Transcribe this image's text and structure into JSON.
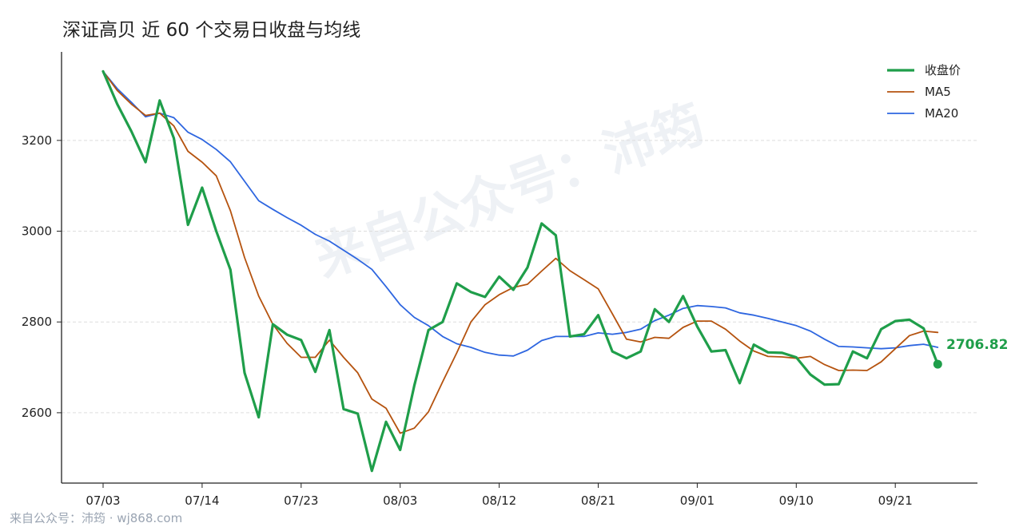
{
  "title": "深证高贝 近 60 个交易日收盘与均线",
  "watermark": "来自公众号：沛筠",
  "footer": "来自公众号：沛筠 · wj868.com",
  "colors": {
    "close": "#1f9e4a",
    "ma5": "#b5530f",
    "ma20": "#2e66e0",
    "grid": "#dddddd",
    "axis": "#222222"
  },
  "chart_data": {
    "type": "line",
    "title": "深证高贝 近 60 个交易日收盘与均线",
    "xlabel": "",
    "ylabel": "",
    "x_ticks": [
      "07/03",
      "07/14",
      "07/23",
      "08/03",
      "08/12",
      "08/21",
      "09/01",
      "09/10",
      "09/21"
    ],
    "x_tick_index": [
      0,
      7,
      14,
      21,
      28,
      35,
      42,
      49,
      56
    ],
    "y_ticks": [
      2600,
      2800,
      3000,
      3200
    ],
    "ylim": [
      2445,
      3395
    ],
    "grid": true,
    "grid_axis": "y",
    "legend": "top-right",
    "last_value_label": "2706.82",
    "series": [
      {
        "name": "收盘价",
        "key": "close",
        "values": [
          3352,
          3280,
          3220,
          3152,
          3288,
          3205,
          3014,
          3096,
          3000,
          2915,
          2688,
          2590,
          2795,
          2772,
          2760,
          2690,
          2782,
          2608,
          2598,
          2472,
          2580,
          2518,
          2660,
          2782,
          2800,
          2885,
          2866,
          2855,
          2900,
          2871,
          2920,
          3017,
          2991,
          2768,
          2773,
          2815,
          2735,
          2720,
          2735,
          2828,
          2800,
          2857,
          2790,
          2735,
          2738,
          2665,
          2750,
          2733,
          2732,
          2722,
          2684,
          2662,
          2663,
          2735,
          2720,
          2784,
          2802,
          2805,
          2786,
          2707
        ]
      },
      {
        "name": "MA5",
        "key": "ma5",
        "values": [
          3352,
          3310,
          3280,
          3255,
          3260,
          3232,
          3176,
          3152,
          3122,
          3045,
          2942,
          2857,
          2795,
          2753,
          2722,
          2722,
          2760,
          2722,
          2688,
          2630,
          2610,
          2555,
          2566,
          2602,
          2668,
          2732,
          2800,
          2838,
          2860,
          2876,
          2883,
          2912,
          2940,
          2913,
          2893,
          2873,
          2818,
          2762,
          2756,
          2766,
          2764,
          2788,
          2802,
          2802,
          2784,
          2758,
          2736,
          2724,
          2723,
          2720,
          2724,
          2706,
          2693,
          2694,
          2693,
          2712,
          2741,
          2770,
          2780,
          2777
        ]
      },
      {
        "name": "MA20",
        "key": "ma20",
        "values": [
          3352,
          3314,
          3284,
          3252,
          3260,
          3250,
          3218,
          3202,
          3180,
          3153,
          3110,
          3067,
          3048,
          3030,
          3013,
          2993,
          2978,
          2958,
          2938,
          2916,
          2878,
          2838,
          2810,
          2792,
          2768,
          2752,
          2744,
          2733,
          2727,
          2725,
          2738,
          2759,
          2768,
          2768,
          2768,
          2776,
          2773,
          2777,
          2784,
          2803,
          2815,
          2830,
          2836,
          2834,
          2831,
          2820,
          2815,
          2808,
          2800,
          2792,
          2780,
          2762,
          2746,
          2745,
          2743,
          2741,
          2743,
          2748,
          2751,
          2744
        ]
      }
    ]
  }
}
